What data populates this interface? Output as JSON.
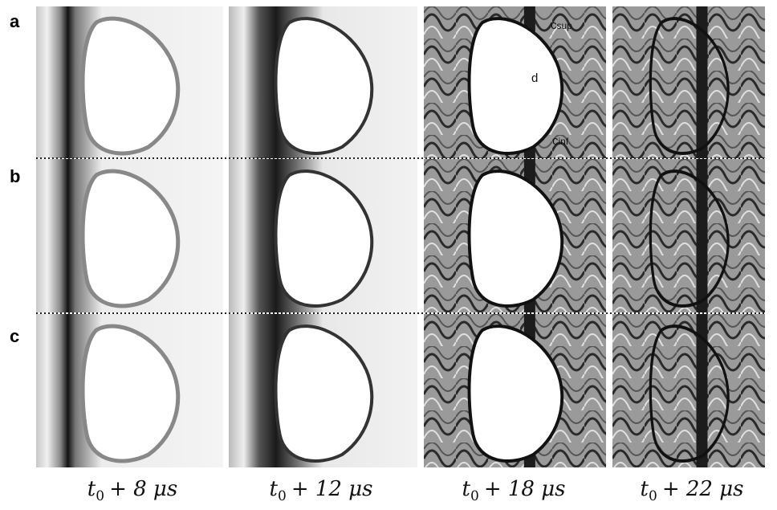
{
  "rows": [
    {
      "label": "a"
    },
    {
      "label": "b"
    },
    {
      "label": "c"
    }
  ],
  "captions": [
    {
      "base": "t",
      "sub": "0",
      "expr": "+ 8 μs"
    },
    {
      "base": "t",
      "sub": "0",
      "expr": "+ 12 μs"
    },
    {
      "base": "t",
      "sub": "0",
      "expr": "+ 18 μs"
    },
    {
      "base": "t",
      "sub": "0",
      "expr": "+ 22 μs"
    }
  ],
  "annotations": {
    "c_sup": {
      "base": "c",
      "sub": "sup"
    },
    "d": "d",
    "c_inf": {
      "base": "c",
      "sub": "inf"
    }
  }
}
